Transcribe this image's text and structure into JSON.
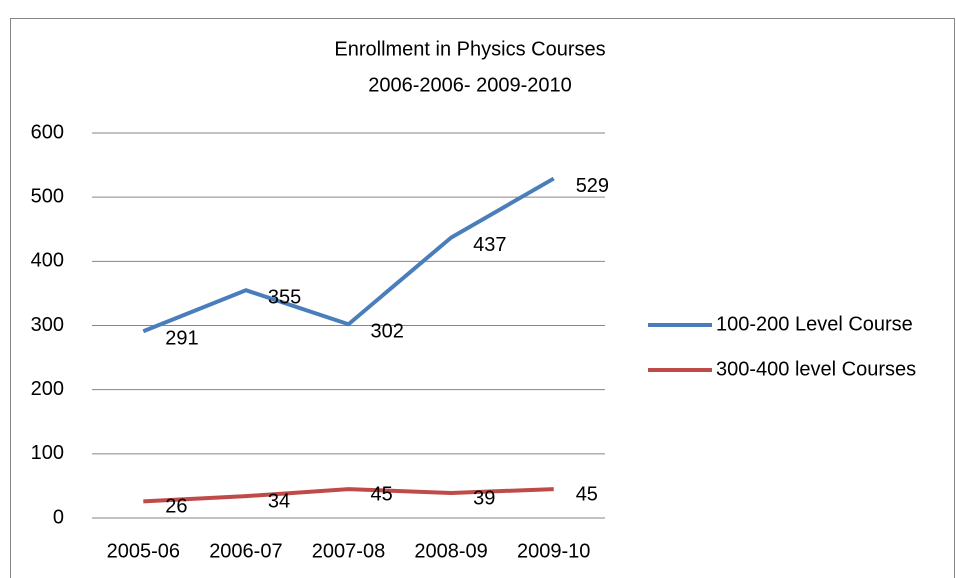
{
  "chart_data": {
    "type": "line",
    "title": "Enrollment in Physics Courses",
    "subtitle": "2006-2006- 2009-2010",
    "categories": [
      "2005-06",
      "2006-07",
      "2007-08",
      "2008-09",
      "2009-10"
    ],
    "series": [
      {
        "name": "100-200 Level Course",
        "color": "#4a7ebb",
        "values": [
          291,
          355,
          302,
          437,
          529
        ]
      },
      {
        "name": "300-400 level Courses",
        "color": "#be4b48",
        "values": [
          26,
          34,
          45,
          39,
          45
        ]
      }
    ],
    "ylim": [
      0,
      600
    ],
    "yticks": [
      0,
      100,
      200,
      300,
      400,
      500,
      600
    ],
    "grid": true,
    "legend": "right"
  }
}
